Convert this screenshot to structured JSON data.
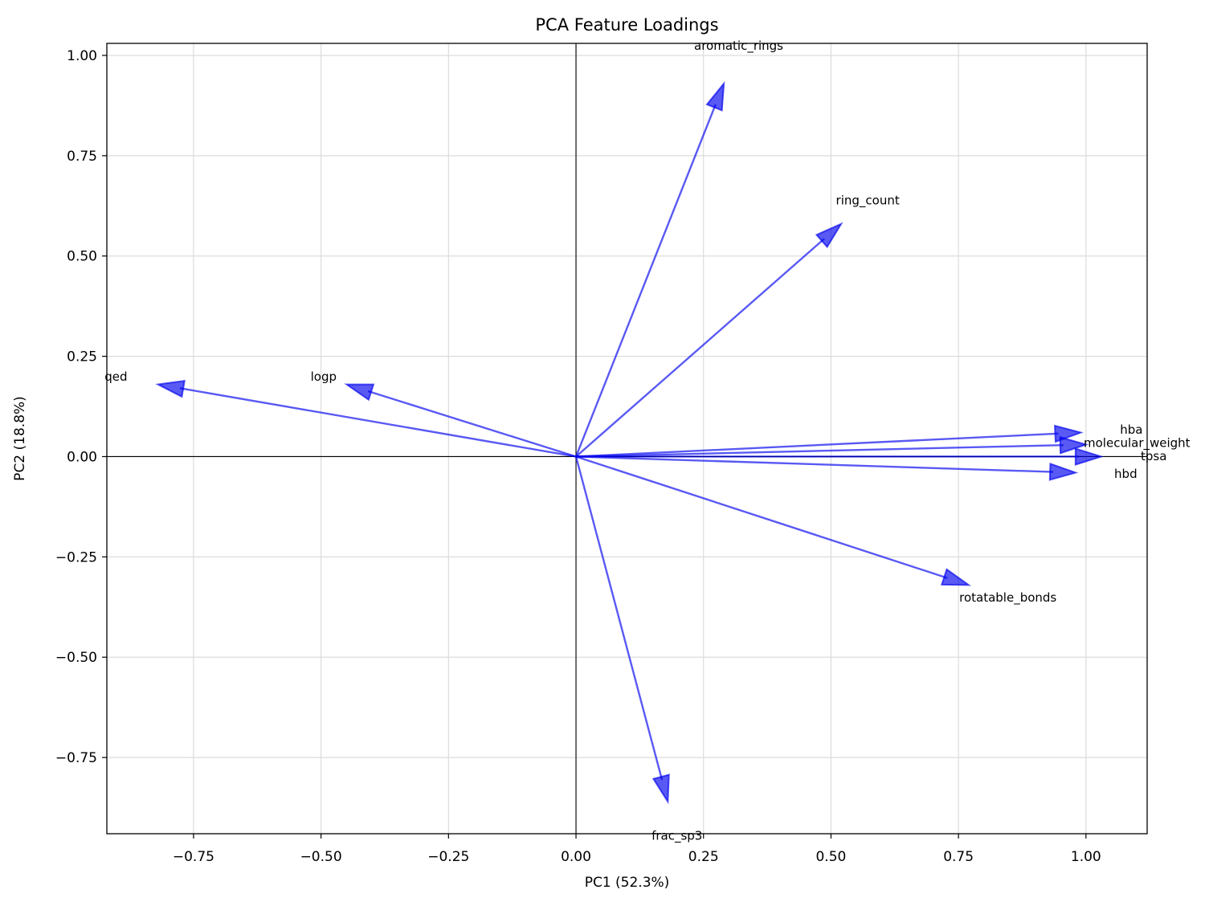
{
  "chart_data": {
    "type": "scatter",
    "subtype": "pca-loading-vectors",
    "title": "PCA Feature Loadings",
    "xlabel": "PC1 (52.3%)",
    "ylabel": "PC2 (18.8%)",
    "xlim": [
      -0.92,
      1.12
    ],
    "ylim": [
      -0.94,
      1.03
    ],
    "xticks": [
      -0.75,
      -0.5,
      -0.25,
      0.0,
      0.25,
      0.5,
      0.75,
      1.0
    ],
    "xtick_labels": [
      "−0.75",
      "−0.50",
      "−0.25",
      "0.00",
      "0.25",
      "0.50",
      "0.75",
      "1.00"
    ],
    "yticks": [
      -0.75,
      -0.5,
      -0.25,
      0.0,
      0.25,
      0.5,
      0.75,
      1.0
    ],
    "ytick_labels": [
      "−0.75",
      "−0.50",
      "−0.25",
      "0.00",
      "0.25",
      "0.50",
      "0.75",
      "1.00"
    ],
    "grid": true,
    "zero_lines": true,
    "arrow_color": "#0000ee",
    "arrow_alpha": 0.65,
    "vectors": [
      {
        "feature": "aromatic_rings",
        "x": 0.29,
        "y": 0.93,
        "label": "aromatic_rings"
      },
      {
        "feature": "ring_count",
        "x": 0.52,
        "y": 0.58,
        "label": "ring_count"
      },
      {
        "feature": "qed",
        "x": -0.82,
        "y": 0.18,
        "label": "qed"
      },
      {
        "feature": "logp",
        "x": -0.45,
        "y": 0.18,
        "label": "logp"
      },
      {
        "feature": "hba",
        "x": 0.99,
        "y": 0.06,
        "label": "hba"
      },
      {
        "feature": "molecular_weight",
        "x": 1.0,
        "y": 0.03,
        "label": "molecular_weight"
      },
      {
        "feature": "tpsa",
        "x": 1.03,
        "y": 0.0,
        "label": "tpsa"
      },
      {
        "feature": "hbd",
        "x": 0.98,
        "y": -0.04,
        "label": "hbd"
      },
      {
        "feature": "rotatable_bonds",
        "x": 0.77,
        "y": -0.32,
        "label": "rotatable_bonds"
      },
      {
        "feature": "frac_sp3",
        "x": 0.18,
        "y": -0.86,
        "label": "frac_sp3"
      }
    ]
  }
}
